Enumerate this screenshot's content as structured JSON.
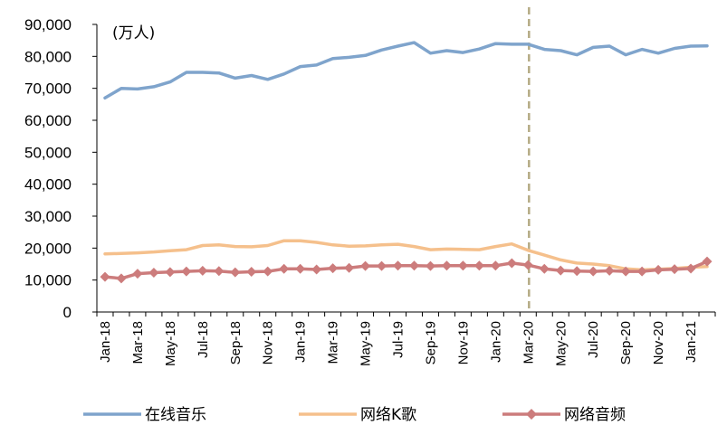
{
  "chart_data": {
    "type": "line",
    "title": "",
    "unit_label": "(万人)",
    "xlabel": "",
    "ylabel": "",
    "ylim": [
      0,
      90000
    ],
    "y_ticks": [
      "0",
      "10,000",
      "20,000",
      "30,000",
      "40,000",
      "50,000",
      "60,000",
      "70,000",
      "80,000",
      "90,000"
    ],
    "x_tick_labels": [
      "Jan-18",
      "Mar-18",
      "May-18",
      "Jul-18",
      "Sep-18",
      "Nov-18",
      "Jan-19",
      "Mar-19",
      "May-19",
      "Jul-19",
      "Sep-19",
      "Nov-19",
      "Jan-20",
      "Mar-20",
      "May-20",
      "Jul-20",
      "Sep-20",
      "Nov-20",
      "Jan-21"
    ],
    "x": [
      "2018-01",
      "2018-02",
      "2018-03",
      "2018-04",
      "2018-05",
      "2018-06",
      "2018-07",
      "2018-08",
      "2018-09",
      "2018-10",
      "2018-11",
      "2018-12",
      "2019-01",
      "2019-02",
      "2019-03",
      "2019-04",
      "2019-05",
      "2019-06",
      "2019-07",
      "2019-08",
      "2019-09",
      "2019-10",
      "2019-11",
      "2019-12",
      "2020-01",
      "2020-02",
      "2020-03",
      "2020-04",
      "2020-05",
      "2020-06",
      "2020-07",
      "2020-08",
      "2020-09",
      "2020-10",
      "2020-11",
      "2020-12",
      "2021-01",
      "2021-02"
    ],
    "vertical_reference_line": "2020-03",
    "grid": false,
    "legend_position": "bottom",
    "series": [
      {
        "name": "在线音乐",
        "color": "#7fa4cc",
        "marker": "none",
        "values": [
          67000,
          70000,
          69800,
          70500,
          72000,
          75000,
          75000,
          74800,
          73200,
          74000,
          72800,
          74500,
          76800,
          77300,
          79300,
          79700,
          80300,
          82000,
          83200,
          84300,
          81000,
          81800,
          81200,
          82300,
          84000,
          83800,
          83800,
          82200,
          81800,
          80500,
          82800,
          83200,
          80500,
          82200,
          81000,
          82500,
          83200,
          83300
        ]
      },
      {
        "name": "网络K歌",
        "color": "#f5c08c",
        "marker": "none",
        "values": [
          18200,
          18300,
          18500,
          18800,
          19200,
          19500,
          20800,
          21000,
          20500,
          20400,
          20800,
          22300,
          22300,
          21800,
          21000,
          20600,
          20700,
          21000,
          21200,
          20500,
          19500,
          19700,
          19600,
          19500,
          20500,
          21300,
          19300,
          17800,
          16300,
          15300,
          15000,
          14500,
          13500,
          13200,
          13400,
          13600,
          14000,
          14200
        ]
      },
      {
        "name": "网络音频",
        "color": "#cc7c7c",
        "marker": "diamond",
        "values": [
          11000,
          10500,
          12000,
          12300,
          12500,
          12700,
          12900,
          12800,
          12400,
          12600,
          12700,
          13500,
          13500,
          13300,
          13700,
          13800,
          14400,
          14400,
          14500,
          14500,
          14400,
          14500,
          14500,
          14500,
          14500,
          15300,
          14700,
          13500,
          13000,
          12800,
          12700,
          12900,
          12700,
          12700,
          13200,
          13400,
          13600,
          15800
        ]
      }
    ]
  }
}
